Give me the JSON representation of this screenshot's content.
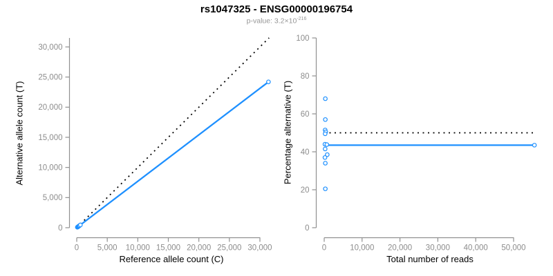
{
  "header": {
    "title": "rs1047325 - ENSG00000196754",
    "subtitle_prefix": "p-value: 3.2×10",
    "subtitle_exponent": "-216"
  },
  "colors": {
    "accent_blue": "#1e90ff",
    "axis_line_gray": "#909090",
    "tick_label_gray": "#8c8c8c",
    "dotted_line_black": "#000000",
    "title_black": "#000000",
    "subtitle_gray": "#969696"
  },
  "chart_data": [
    {
      "id": "left",
      "type": "scatter",
      "xlabel": "Reference allele count (C)",
      "ylabel": "Alternative allele count (T)",
      "xlim": [
        0,
        31500
      ],
      "ylim": [
        0,
        31500
      ],
      "grid": false,
      "x_ticks": {
        "values": [
          0,
          5000,
          10000,
          15000,
          20000,
          25000,
          30000
        ],
        "labels": [
          "0",
          "5,000",
          "10,000",
          "15,000",
          "20,000",
          "25,000",
          "30,000"
        ]
      },
      "y_ticks": {
        "values": [
          0,
          5000,
          10000,
          15000,
          20000,
          25000,
          30000
        ],
        "labels": [
          "0",
          "5,000",
          "10,000",
          "15,000",
          "20,000",
          "25,000",
          "30,000"
        ]
      },
      "points": [
        [
          100,
          75
        ],
        [
          140,
          105
        ],
        [
          180,
          140
        ],
        [
          220,
          165
        ],
        [
          260,
          200
        ],
        [
          300,
          230
        ],
        [
          360,
          275
        ],
        [
          450,
          345
        ],
        [
          600,
          460
        ],
        [
          31400,
          24200
        ]
      ],
      "fit_line": {
        "x1": 150,
        "y1": 115,
        "x2": 31400,
        "y2": 24200,
        "style": "solid"
      },
      "identity_line": {
        "x1": 0,
        "y1": 0,
        "x2": 31500,
        "y2": 31500,
        "style": "dotted",
        "note": "y = x"
      }
    },
    {
      "id": "right",
      "type": "scatter",
      "xlabel": "Total number of reads",
      "ylabel": "Percentage alternative (T)",
      "xlim": [
        0,
        56000
      ],
      "ylim": [
        0,
        100
      ],
      "grid": false,
      "x_ticks": {
        "values": [
          0,
          10000,
          20000,
          30000,
          40000,
          50000
        ],
        "labels": [
          "0",
          "10,000",
          "20,000",
          "30,000",
          "40,000",
          "50,000"
        ]
      },
      "y_ticks": {
        "values": [
          0,
          20,
          40,
          60,
          80,
          100
        ],
        "labels": [
          "0",
          "20",
          "40",
          "60",
          "80",
          "100"
        ]
      },
      "points": [
        [
          300,
          68
        ],
        [
          300,
          57
        ],
        [
          250,
          51.5
        ],
        [
          400,
          50.5
        ],
        [
          250,
          49.5
        ],
        [
          200,
          44
        ],
        [
          700,
          43.8
        ],
        [
          250,
          41.5
        ],
        [
          800,
          38.5
        ],
        [
          200,
          37
        ],
        [
          300,
          34
        ],
        [
          300,
          20.5
        ],
        [
          55500,
          43.5
        ]
      ],
      "fit_line": {
        "x1": 0,
        "y1": 43.5,
        "x2": 55500,
        "y2": 43.5,
        "style": "solid"
      },
      "reference_line": {
        "y": 50,
        "style": "dotted",
        "note": "50% balanced expression"
      }
    }
  ]
}
